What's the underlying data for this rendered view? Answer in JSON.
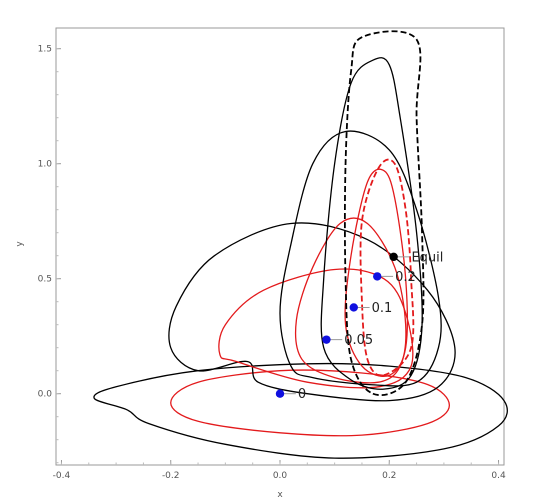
{
  "chart_data": {
    "type": "line",
    "xlabel": "x",
    "ylabel": "y",
    "xlim": [
      -0.41,
      0.41
    ],
    "ylim": [
      -0.31,
      1.59
    ],
    "xticks": [
      -0.4,
      -0.2,
      0.0,
      0.2,
      0.4
    ],
    "xtick_labels": [
      "-0.4",
      "-0.2",
      "0.0",
      "0.2",
      "0.4"
    ],
    "yticks": [
      0.0,
      0.5,
      1.0,
      1.5
    ],
    "ytick_labels": [
      "0.0",
      "0.5",
      "1.0",
      "1.5"
    ],
    "grid": false,
    "colors": {
      "red": "#e31a1c",
      "black": "#000000",
      "blue": "#1010e0",
      "leader": "#9a9a9a"
    },
    "series": [
      {
        "color": "#000000",
        "dash": false,
        "points": [
          [
            -0.28,
            -0.07
          ],
          [
            -0.24,
            -0.13
          ],
          [
            -0.1,
            -0.22
          ],
          [
            0.1,
            -0.28
          ],
          [
            0.3,
            -0.24
          ],
          [
            0.4,
            -0.14
          ],
          [
            0.41,
            -0.03
          ],
          [
            0.34,
            0.07
          ],
          [
            0.2,
            0.12
          ],
          [
            0.05,
            0.13
          ],
          [
            -0.15,
            0.1
          ],
          [
            -0.3,
            0.03
          ],
          [
            -0.34,
            -0.02
          ],
          [
            -0.28,
            -0.07
          ]
        ]
      },
      {
        "color": "#e31a1c",
        "dash": false,
        "points": [
          [
            -0.2,
            -0.04
          ],
          [
            -0.15,
            -0.12
          ],
          [
            0.0,
            -0.17
          ],
          [
            0.15,
            -0.18
          ],
          [
            0.27,
            -0.13
          ],
          [
            0.31,
            -0.05
          ],
          [
            0.27,
            0.04
          ],
          [
            0.15,
            0.09
          ],
          [
            0.0,
            0.1
          ],
          [
            -0.15,
            0.05
          ],
          [
            -0.2,
            -0.04
          ]
        ]
      },
      {
        "color": "#000000",
        "dash": false,
        "points": [
          [
            -0.06,
            0.14
          ],
          [
            -0.04,
            0.05
          ],
          [
            0.05,
            0.0
          ],
          [
            0.2,
            -0.03
          ],
          [
            0.29,
            0.03
          ],
          [
            0.32,
            0.2
          ],
          [
            0.27,
            0.45
          ],
          [
            0.16,
            0.67
          ],
          [
            0.02,
            0.74
          ],
          [
            -0.12,
            0.6
          ],
          [
            -0.19,
            0.38
          ],
          [
            -0.2,
            0.2
          ],
          [
            -0.15,
            0.1
          ],
          [
            -0.06,
            0.14
          ]
        ]
      },
      {
        "color": "#e31a1c",
        "dash": false,
        "points": [
          [
            -0.08,
            0.14
          ],
          [
            0.05,
            0.05
          ],
          [
            0.18,
            0.03
          ],
          [
            0.24,
            0.12
          ],
          [
            0.23,
            0.35
          ],
          [
            0.19,
            0.5
          ],
          [
            0.1,
            0.54
          ],
          [
            -0.03,
            0.45
          ],
          [
            -0.1,
            0.3
          ],
          [
            -0.11,
            0.17
          ],
          [
            -0.08,
            0.14
          ]
        ]
      },
      {
        "color": "#000000",
        "dash": false,
        "points": [
          [
            0.02,
            0.12
          ],
          [
            0.06,
            0.07
          ],
          [
            0.16,
            0.04
          ],
          [
            0.25,
            0.05
          ],
          [
            0.29,
            0.2
          ],
          [
            0.29,
            0.42
          ],
          [
            0.25,
            0.8
          ],
          [
            0.2,
            1.06
          ],
          [
            0.12,
            1.14
          ],
          [
            0.06,
            1.0
          ],
          [
            0.02,
            0.65
          ],
          [
            0.0,
            0.35
          ],
          [
            0.02,
            0.12
          ]
        ]
      },
      {
        "color": "#e31a1c",
        "dash": false,
        "points": [
          [
            0.04,
            0.15
          ],
          [
            0.1,
            0.07
          ],
          [
            0.18,
            0.05
          ],
          [
            0.22,
            0.12
          ],
          [
            0.23,
            0.3
          ],
          [
            0.21,
            0.55
          ],
          [
            0.16,
            0.74
          ],
          [
            0.11,
            0.74
          ],
          [
            0.06,
            0.55
          ],
          [
            0.03,
            0.32
          ],
          [
            0.04,
            0.15
          ]
        ]
      },
      {
        "color": "#000000",
        "dash": false,
        "points": [
          [
            0.13,
            0.06
          ],
          [
            0.19,
            0.02
          ],
          [
            0.24,
            0.08
          ],
          [
            0.26,
            0.3
          ],
          [
            0.25,
            0.7
          ],
          [
            0.22,
            1.2
          ],
          [
            0.2,
            1.43
          ],
          [
            0.17,
            1.45
          ],
          [
            0.13,
            1.35
          ],
          [
            0.1,
            1.0
          ],
          [
            0.08,
            0.5
          ],
          [
            0.08,
            0.2
          ],
          [
            0.13,
            0.06
          ]
        ]
      },
      {
        "color": "#e31a1c",
        "dash": false,
        "points": [
          [
            0.15,
            0.12
          ],
          [
            0.2,
            0.08
          ],
          [
            0.23,
            0.2
          ],
          [
            0.23,
            0.5
          ],
          [
            0.21,
            0.85
          ],
          [
            0.19,
            0.97
          ],
          [
            0.16,
            0.92
          ],
          [
            0.13,
            0.6
          ],
          [
            0.12,
            0.3
          ],
          [
            0.15,
            0.12
          ]
        ]
      },
      {
        "color": "#000000",
        "dash": true,
        "points": [
          [
            0.17,
            0.0
          ],
          [
            0.23,
            0.05
          ],
          [
            0.26,
            0.3
          ],
          [
            0.26,
            0.7
          ],
          [
            0.25,
            1.2
          ],
          [
            0.25,
            1.54
          ],
          [
            0.15,
            1.55
          ],
          [
            0.13,
            1.4
          ],
          [
            0.12,
            1.0
          ],
          [
            0.12,
            0.5
          ],
          [
            0.13,
            0.15
          ],
          [
            0.17,
            0.0
          ]
        ]
      },
      {
        "color": "#e31a1c",
        "dash": true,
        "points": [
          [
            0.19,
            0.08
          ],
          [
            0.24,
            0.2
          ],
          [
            0.24,
            0.5
          ],
          [
            0.23,
            0.8
          ],
          [
            0.21,
            1.0
          ],
          [
            0.18,
            0.98
          ],
          [
            0.15,
            0.75
          ],
          [
            0.15,
            0.4
          ],
          [
            0.16,
            0.15
          ],
          [
            0.19,
            0.08
          ]
        ]
      }
    ],
    "labeled_points": [
      {
        "label": "0",
        "x": 0.0,
        "y": 0.0,
        "color": "#1010e0",
        "dx": 0.007,
        "dy": 0.0
      },
      {
        "label": "0.05",
        "x": 0.085,
        "y": 0.235,
        "color": "#1010e0",
        "dx": 0.007,
        "dy": 0.0
      },
      {
        "label": "0.1",
        "x": 0.135,
        "y": 0.375,
        "color": "#1010e0",
        "dx": 0.007,
        "dy": 0.0
      },
      {
        "label": "0.2",
        "x": 0.178,
        "y": 0.51,
        "color": "#1010e0",
        "dx": 0.007,
        "dy": 0.0
      },
      {
        "label": "Equil",
        "x": 0.208,
        "y": 0.595,
        "color": "#000000",
        "dx": 0.007,
        "dy": 0.0
      }
    ]
  }
}
